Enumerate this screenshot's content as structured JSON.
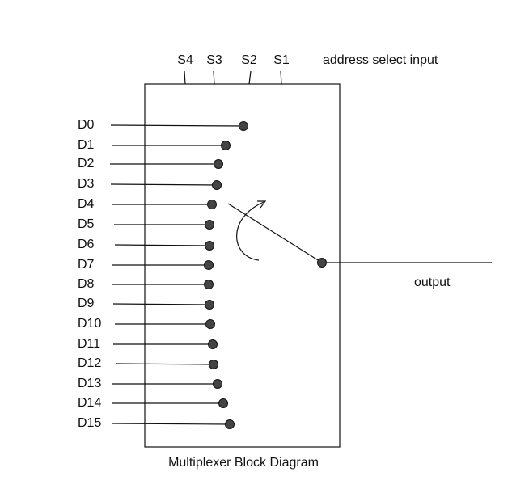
{
  "select_inputs": [
    "S4",
    "S3",
    "S2",
    "S1"
  ],
  "select_label": "address select input",
  "data_inputs": [
    "D0",
    "D1",
    "D2",
    "D3",
    "D4",
    "D5",
    "D6",
    "D7",
    "D8",
    "D9",
    "D10",
    "D11",
    "D12",
    "D13",
    "D14",
    "D15"
  ],
  "output_label": "output",
  "caption": "Multiplexer Block Diagram"
}
